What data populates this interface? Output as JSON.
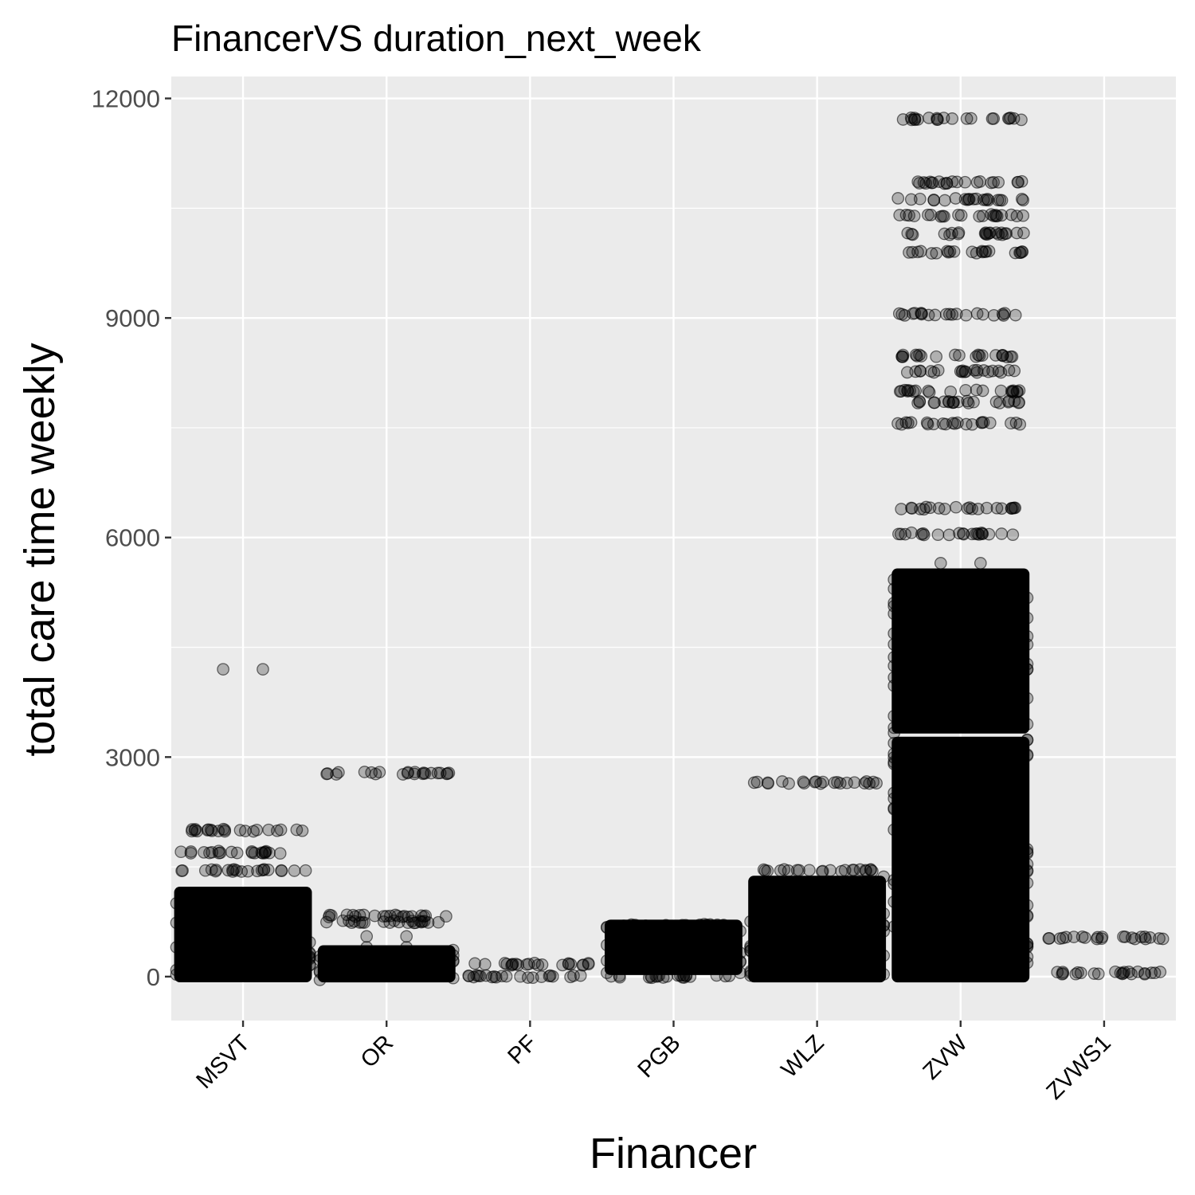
{
  "chart_data": {
    "type": "scatter",
    "title": "FinancerVS duration_next_week",
    "xlabel": "Financer",
    "ylabel": "total care time weekly",
    "ylim": [
      -600,
      12300
    ],
    "yticks": [
      0,
      3000,
      6000,
      9000,
      12000
    ],
    "grid": true,
    "legend": "none",
    "jitter": true,
    "categories": [
      "MSVT",
      "OR",
      "PF",
      "PGB",
      "WLZ",
      "ZVW",
      "ZVWS1"
    ],
    "series": [
      {
        "category": "MSVT",
        "dense_ranges": [
          [
            0,
            1150
          ]
        ],
        "levels": [
          1450,
          1700,
          2000
        ],
        "outliers": [
          4200
        ]
      },
      {
        "category": "OR",
        "dense_ranges": [
          [
            0,
            350
          ]
        ],
        "levels": [
          750,
          830,
          2780
        ],
        "outliers": [
          400,
          550
        ]
      },
      {
        "category": "PF",
        "dense_ranges": [],
        "levels": [
          0,
          170
        ],
        "outliers": []
      },
      {
        "category": "PGB",
        "dense_ranges": [
          [
            100,
            700
          ]
        ],
        "levels": [
          0,
          700
        ],
        "outliers": []
      },
      {
        "category": "WLZ",
        "dense_ranges": [
          [
            0,
            1300
          ]
        ],
        "levels": [
          1450,
          2650
        ],
        "outliers": []
      },
      {
        "category": "ZVW",
        "dense_ranges": [
          [
            0,
            3200
          ],
          [
            3400,
            5500
          ]
        ],
        "levels": [
          6050,
          6400,
          7560,
          7850,
          8000,
          8270,
          8480,
          9050,
          9900,
          10150,
          10400,
          10620,
          10850,
          11720
        ],
        "outliers": [
          5650
        ]
      },
      {
        "category": "ZVWS1",
        "dense_ranges": [],
        "levels": [
          50,
          530
        ],
        "outliers": []
      }
    ]
  }
}
